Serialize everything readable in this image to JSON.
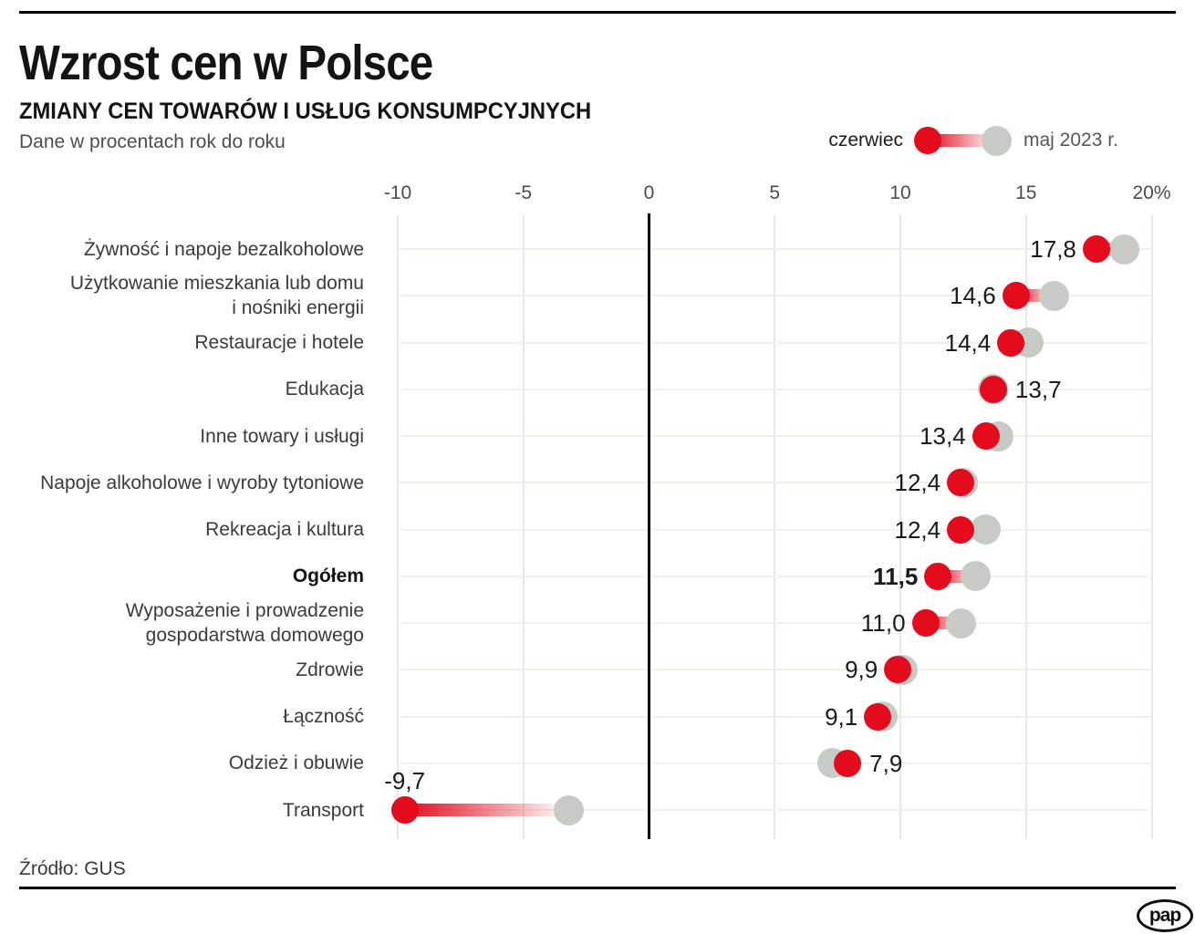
{
  "header": {
    "title": "Wzrost cen w Polsce",
    "subtitle": "ZMIANY CEN TOWARÓW I USŁUG KONSUMPCYJNYCH",
    "note": "Dane w procentach rok do roku"
  },
  "legend": {
    "june_label": "czerwiec",
    "may_label": "maj 2023 r."
  },
  "footer": {
    "source": "Źródło: GUS",
    "logo": "pap"
  },
  "colors": {
    "june_red": "#e30b1c",
    "may_gray": "#c6ccc5",
    "zero_line": "#000000",
    "gridline": "#e9e9e2",
    "row_line": "#f1f1ea"
  },
  "chart_data": {
    "type": "scatter",
    "subtype": "dumbbell",
    "title": "ZMIANY CEN TOWARÓW I USŁUG KONSUMPCYJNYCH",
    "unit": "percent, rok do roku",
    "axis": {
      "min": -10,
      "max": 20,
      "ticks": [
        -10,
        -5,
        0,
        5,
        10,
        15,
        20
      ],
      "tick_labels": [
        "-10",
        "-5",
        "0",
        "5",
        "10",
        "15",
        "20%"
      ],
      "grid": true
    },
    "series_names": [
      "czerwiec",
      "maj 2023 r."
    ],
    "rows": [
      {
        "label": [
          "Żywność i napoje bezalkoholowe"
        ],
        "czerwiec": 17.8,
        "czerwiec_label": "17,8",
        "maj_2023": 18.9,
        "label_side": "left",
        "bold": false
      },
      {
        "label": [
          "Użytkowanie mieszkania lub domu",
          "i nośniki energii"
        ],
        "czerwiec": 14.6,
        "czerwiec_label": "14,6",
        "maj_2023": 16.1,
        "label_side": "left",
        "bold": false
      },
      {
        "label": [
          "Restauracje i hotele"
        ],
        "czerwiec": 14.4,
        "czerwiec_label": "14,4",
        "maj_2023": 15.1,
        "label_side": "left",
        "bold": false
      },
      {
        "label": [
          "Edukacja"
        ],
        "czerwiec": 13.7,
        "czerwiec_label": "13,7",
        "maj_2023": 13.7,
        "label_side": "right",
        "bold": false
      },
      {
        "label": [
          "Inne towary i usługi"
        ],
        "czerwiec": 13.4,
        "czerwiec_label": "13,4",
        "maj_2023": 13.9,
        "label_side": "left",
        "bold": false
      },
      {
        "label": [
          "Napoje alkoholowe i wyroby tytoniowe"
        ],
        "czerwiec": 12.4,
        "czerwiec_label": "12,4",
        "maj_2023": 12.5,
        "label_side": "left",
        "bold": false
      },
      {
        "label": [
          "Rekreacja i kultura"
        ],
        "czerwiec": 12.4,
        "czerwiec_label": "12,4",
        "maj_2023": 13.4,
        "label_side": "left",
        "bold": false
      },
      {
        "label": [
          "Ogółem"
        ],
        "czerwiec": 11.5,
        "czerwiec_label": "11,5",
        "maj_2023": 13.0,
        "label_side": "left",
        "bold": true
      },
      {
        "label": [
          "Wyposażenie i prowadzenie",
          "gospodarstwa domowego"
        ],
        "czerwiec": 11.0,
        "czerwiec_label": "11,0",
        "maj_2023": 12.4,
        "label_side": "left",
        "bold": false
      },
      {
        "label": [
          "Zdrowie"
        ],
        "czerwiec": 9.9,
        "czerwiec_label": "9,9",
        "maj_2023": 10.1,
        "label_side": "left",
        "bold": false
      },
      {
        "label": [
          "Łączność"
        ],
        "czerwiec": 9.1,
        "czerwiec_label": "9,1",
        "maj_2023": 9.3,
        "label_side": "left",
        "bold": false
      },
      {
        "label": [
          "Odzież i obuwie"
        ],
        "czerwiec": 7.9,
        "czerwiec_label": "7,9",
        "maj_2023": 7.3,
        "label_side": "right",
        "bold": false
      },
      {
        "label": [
          "Transport"
        ],
        "czerwiec": -9.7,
        "czerwiec_label": "-9,7",
        "maj_2023": -3.2,
        "label_side": "above",
        "bold": false
      }
    ]
  }
}
